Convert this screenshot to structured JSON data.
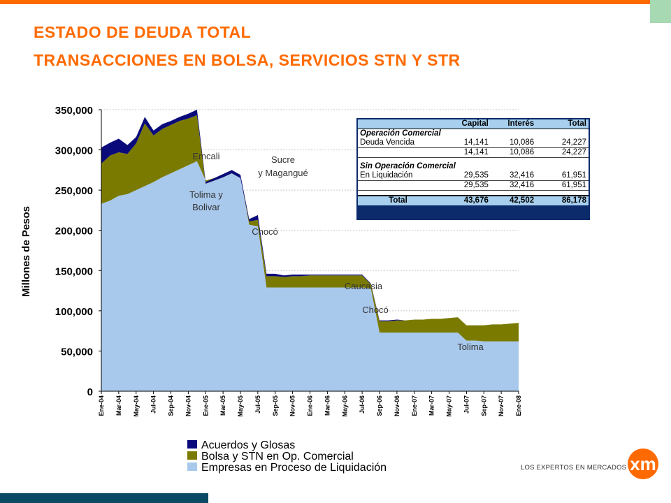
{
  "title_line1": "ESTADO  DE  DEUDA  TOTAL",
  "title_line2": "TRANSACCIONES EN BOLSA, SERVICIOS  STN Y STR",
  "logo": {
    "tagline": "LOS EXPERTOS EN MERCADOS",
    "mark": "xm"
  },
  "colors": {
    "accent": "#ff6a00",
    "series_acuerdos": "#0a0a7a",
    "series_bolsa": "#7a7a00",
    "series_empresas": "#a8c8ec",
    "table_header": "#a8d0ee"
  },
  "table": {
    "headers": [
      "",
      "Capital",
      "Interés",
      "Total"
    ],
    "section1": "Operación Comercial",
    "row1": {
      "label": "Deuda Vencida",
      "capital": "14,141",
      "interes": "10,086",
      "total": "24,227"
    },
    "sub1": {
      "capital": "14,141",
      "interes": "10,086",
      "total": "24,227"
    },
    "section2": "Sin Operación Comercial",
    "row2": {
      "label": "En Liquidación",
      "capital": "29,535",
      "interes": "32,416",
      "total": "61,951"
    },
    "sub2": {
      "capital": "29,535",
      "interes": "32,416",
      "total": "61,951"
    },
    "total": {
      "label": "Total",
      "capital": "43,676",
      "interes": "42,502",
      "total": "86,178"
    }
  },
  "chart_data": {
    "type": "area",
    "stacked": true,
    "ylabel": "Millones de Pesos",
    "ylim": [
      0,
      350000
    ],
    "yticks": [
      0,
      50000,
      100000,
      150000,
      200000,
      250000,
      300000,
      350000
    ],
    "ytick_labels": [
      "0",
      "50,000",
      "100,000",
      "150,000",
      "200,000",
      "250,000",
      "300,000",
      "350,000"
    ],
    "x_tick_labels": [
      "Ene-04",
      "Mar-04",
      "May-04",
      "Jul-04",
      "Sep-04",
      "Nov-04",
      "Ene-05",
      "Mar-05",
      "May-05",
      "Jul-05",
      "Sep-05",
      "Nov-05",
      "Ene-06",
      "Mar-06",
      "May-06",
      "Jul-06",
      "Sep-06",
      "Nov-06",
      "Ene-07",
      "Mar-07",
      "May-07",
      "Jul-07",
      "Sep-07",
      "Nov-07",
      "Ene-08"
    ],
    "x_months": [
      "Ene-04",
      "Feb-04",
      "Mar-04",
      "Abr-04",
      "May-04",
      "Jun-04",
      "Jul-04",
      "Ago-04",
      "Sep-04",
      "Oct-04",
      "Nov-04",
      "Dic-04",
      "Ene-05",
      "Feb-05",
      "Mar-05",
      "Abr-05",
      "May-05",
      "Jun-05",
      "Jul-05",
      "Ago-05",
      "Sep-05",
      "Oct-05",
      "Nov-05",
      "Dic-05",
      "Ene-06",
      "Feb-06",
      "Mar-06",
      "Abr-06",
      "May-06",
      "Jun-06",
      "Jul-06",
      "Ago-06",
      "Sep-06",
      "Oct-06",
      "Nov-06",
      "Dic-06",
      "Ene-07",
      "Feb-07",
      "Mar-07",
      "Abr-07",
      "May-07",
      "Jun-07",
      "Jul-07",
      "Ago-07",
      "Sep-07",
      "Oct-07",
      "Nov-07",
      "Dic-07",
      "Ene-08"
    ],
    "series": [
      {
        "name": "Empresas en Proceso de Liquidación",
        "values": [
          233000,
          237000,
          243000,
          245000,
          250000,
          255000,
          260000,
          266000,
          271000,
          276000,
          281000,
          286000,
          262000,
          265000,
          268000,
          272000,
          266000,
          207000,
          205000,
          129000,
          129000,
          129000,
          129000,
          129000,
          129000,
          129000,
          129000,
          129000,
          129000,
          129000,
          129000,
          128000,
          73000,
          73000,
          73000,
          73000,
          73000,
          73000,
          73000,
          73000,
          73000,
          73000,
          63000,
          63000,
          62000,
          62000,
          62000,
          62000,
          62000
        ]
      },
      {
        "name": "Bolsa y STN en Op. Comercial",
        "values": [
          50000,
          56000,
          54000,
          50000,
          58000,
          78000,
          58000,
          60000,
          60000,
          60000,
          58000,
          57000,
          -4000,
          -3000,
          -2000,
          -1000,
          -1000,
          4000,
          8000,
          14000,
          14000,
          13000,
          14000,
          14000,
          15000,
          15000,
          15000,
          15000,
          15000,
          15000,
          15000,
          5000,
          14000,
          14000,
          15000,
          15000,
          16000,
          16000,
          17000,
          17000,
          18000,
          19000,
          19000,
          19000,
          20000,
          21000,
          21000,
          22000,
          23000
        ]
      },
      {
        "name": "Acuerdos y Glosas",
        "values": [
          20000,
          16000,
          17000,
          11000,
          8000,
          8000,
          6000,
          6000,
          5000,
          5000,
          6000,
          7000,
          2000,
          3000,
          4000,
          4000,
          4000,
          3000,
          6000,
          3000,
          3000,
          2000,
          2000,
          2000,
          1000,
          1000,
          1000,
          1000,
          1000,
          1000,
          1000,
          1000,
          1000,
          1000,
          1000,
          0,
          0,
          0,
          0,
          0,
          0,
          0,
          0,
          0,
          0,
          0,
          0,
          0,
          0
        ]
      }
    ],
    "annotations": [
      "Emcali",
      "Tolima y Bolivar",
      "Sucre y Magangué",
      "Chocó",
      "Caucasia",
      "Chocó",
      "Tolima"
    ],
    "legend": [
      "Acuerdos y Glosas",
      "Bolsa y STN en Op. Comercial",
      "Empresas en Proceso de Liquidación"
    ],
    "legend_placement": "bottom",
    "grid": true
  }
}
